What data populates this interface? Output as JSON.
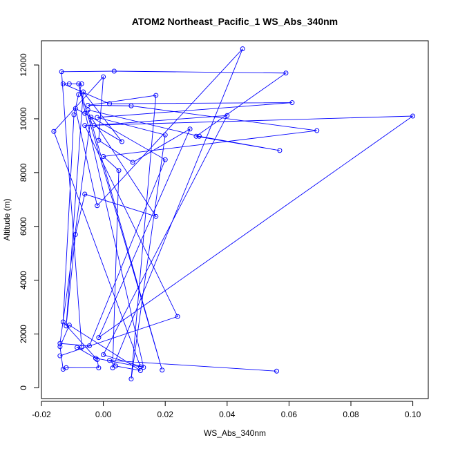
{
  "chart_data": {
    "type": "line",
    "title": "ATOM2 Northeast_Pacific_1 WS_Abs_340nm",
    "xlabel": "WS_Abs_340nm",
    "ylabel": "Altitude (m)",
    "xlim": [
      -0.02,
      0.105
    ],
    "ylim": [
      -400,
      12900
    ],
    "x_ticks": [
      -0.02,
      0.0,
      0.02,
      0.04,
      0.06,
      0.08,
      0.1
    ],
    "x_tick_labels": [
      "-0.02",
      "0.00",
      "0.02",
      "0.04",
      "0.06",
      "0.08",
      "0.10"
    ],
    "y_ticks": [
      0,
      2000,
      4000,
      6000,
      8000,
      10000,
      12000
    ],
    "y_tick_labels": [
      "0",
      "2000",
      "4000",
      "6000",
      "8000",
      "10000",
      "12000"
    ],
    "grid": false,
    "series": [
      {
        "color": "#0000ff",
        "marker": "open-circle",
        "points": [
          [
            0.056,
            620
          ],
          [
            0.002,
            1020
          ],
          [
            0.004,
            810
          ],
          [
            0.012,
            640
          ],
          [
            -0.011,
            2330
          ],
          [
            -0.014,
            1530
          ],
          [
            -0.013,
            690
          ],
          [
            -0.012,
            750
          ],
          [
            -0.0015,
            740
          ],
          [
            -0.002,
            1050
          ],
          [
            -0.013,
            2450
          ],
          [
            -0.0095,
            10150
          ],
          [
            -0.008,
            10900
          ],
          [
            -0.007,
            11300
          ],
          [
            -0.011,
            11300
          ],
          [
            -0.013,
            11300
          ],
          [
            0.002,
            10560
          ],
          [
            0.061,
            10600
          ],
          [
            -0.002,
            10050
          ],
          [
            0.02,
            9400
          ],
          [
            0.009,
            330
          ],
          [
            0.017,
            10870
          ],
          [
            -0.005,
            10500
          ],
          [
            0.009,
            10480
          ],
          [
            0.069,
            9560
          ],
          [
            0.0,
            8600
          ],
          [
            0.005,
            8080
          ],
          [
            0.003,
            740
          ],
          [
            0.045,
            12600
          ],
          [
            -0.002,
            6770
          ],
          [
            -0.009,
            10380
          ],
          [
            -0.006,
            10200
          ],
          [
            0.02,
            8480
          ],
          [
            -0.0045,
            1560
          ],
          [
            -0.014,
            1650
          ],
          [
            -0.004,
            10060
          ],
          [
            0.017,
            6370
          ],
          [
            -0.006,
            7200
          ],
          [
            -0.009,
            5700
          ],
          [
            -0.012,
            2300
          ],
          [
            -0.0065,
            11000
          ],
          [
            0.006,
            9150
          ],
          [
            -0.003,
            9760
          ],
          [
            0.04,
            10120
          ],
          [
            0.0,
            1230
          ],
          [
            0.013,
            760
          ],
          [
            -0.008,
            11300
          ],
          [
            0.019,
            660
          ],
          [
            -0.005,
            10330
          ],
          [
            0.031,
            9350
          ],
          [
            0.057,
            8820
          ],
          [
            0.03,
            9350
          ],
          [
            0.059,
            11700
          ],
          [
            0.0035,
            11770
          ],
          [
            -0.0135,
            11750
          ],
          [
            -0.007,
            1510
          ],
          [
            -0.0085,
            1500
          ],
          [
            -0.0025,
            1100
          ],
          [
            0.012,
            780
          ],
          [
            -0.016,
            9530
          ],
          [
            0.0,
            11560
          ],
          [
            -0.0015,
            9200
          ],
          [
            0.0095,
            8380
          ],
          [
            0.028,
            9620
          ],
          [
            -0.0015,
            1870
          ],
          [
            0.1,
            10100
          ],
          [
            -0.006,
            9750
          ],
          [
            0.024,
            2650
          ],
          [
            -0.014,
            1190
          ]
        ]
      }
    ]
  }
}
